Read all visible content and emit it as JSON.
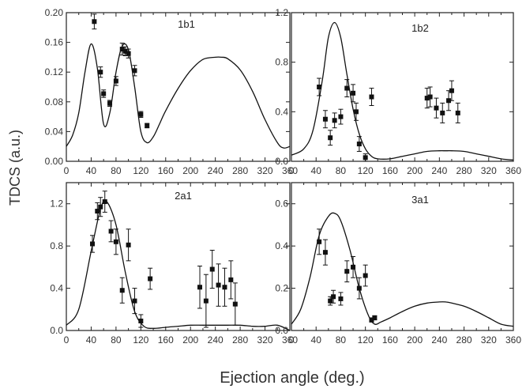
{
  "figure": {
    "ylabel": "TDCS (a.u.)",
    "xlabel": "Ejection angle (deg.)"
  },
  "chart_data": [
    {
      "type": "scatter",
      "title": "1b1",
      "xlim": [
        0,
        360
      ],
      "ylim": [
        0,
        0.2
      ],
      "xticks": [
        0,
        20,
        40,
        60,
        80,
        100,
        120,
        140,
        160,
        180,
        200,
        220,
        240,
        260,
        280,
        300,
        320,
        340,
        360
      ],
      "yticks": [
        0.0,
        0.04,
        0.08,
        0.12,
        0.16,
        0.2
      ],
      "ytick_labels": [
        "0.00",
        "0.04",
        "0.08",
        "0.12",
        "0.16",
        "0.20"
      ],
      "series": [
        {
          "kind": "points",
          "x": [
            45,
            55,
            60,
            70,
            80,
            90,
            95,
            100,
            110,
            120,
            130
          ],
          "y": [
            0.188,
            0.12,
            0.091,
            0.078,
            0.108,
            0.151,
            0.148,
            0.145,
            0.122,
            0.063,
            0.048
          ],
          "err": [
            0.01,
            0.007,
            0.005,
            0.004,
            0.006,
            0.008,
            0.006,
            0.006,
            0.007,
            0.004,
            0.003
          ]
        },
        {
          "kind": "line",
          "x": [
            0,
            10,
            20,
            30,
            40,
            50,
            60,
            70,
            80,
            90,
            100,
            110,
            120,
            130,
            140,
            150,
            160,
            180,
            200,
            220,
            240,
            250,
            260,
            280,
            300,
            320,
            340,
            350,
            360
          ],
          "y": [
            0.02,
            0.035,
            0.065,
            0.12,
            0.158,
            0.125,
            0.05,
            0.065,
            0.12,
            0.155,
            0.15,
            0.1,
            0.04,
            0.025,
            0.033,
            0.05,
            0.068,
            0.098,
            0.122,
            0.137,
            0.14,
            0.14,
            0.138,
            0.123,
            0.094,
            0.056,
            0.025,
            0.018,
            0.02
          ]
        }
      ]
    },
    {
      "type": "scatter",
      "title": "1b2",
      "xlim": [
        0,
        360
      ],
      "ylim": [
        0,
        1.2
      ],
      "xticks": [
        0,
        20,
        40,
        60,
        80,
        100,
        120,
        140,
        160,
        180,
        200,
        220,
        240,
        260,
        280,
        300,
        320,
        340,
        360
      ],
      "yticks": [
        0.0,
        0.4,
        0.8,
        1.2
      ],
      "ytick_labels": [
        "0.0",
        "0.4",
        "0.8",
        "1.2"
      ],
      "series": [
        {
          "kind": "points",
          "x": [
            45,
            55,
            63,
            70,
            80,
            90,
            100,
            105,
            110,
            120,
            130,
            220,
            225,
            235,
            245,
            255,
            260,
            270
          ],
          "y": [
            0.6,
            0.34,
            0.19,
            0.33,
            0.36,
            0.59,
            0.55,
            0.4,
            0.14,
            0.03,
            0.52,
            0.51,
            0.52,
            0.43,
            0.39,
            0.49,
            0.57,
            0.39
          ],
          "err": [
            0.07,
            0.07,
            0.06,
            0.06,
            0.06,
            0.07,
            0.07,
            0.07,
            0.06,
            0.03,
            0.07,
            0.08,
            0.08,
            0.08,
            0.08,
            0.08,
            0.08,
            0.08
          ]
        },
        {
          "kind": "line",
          "x": [
            0,
            20,
            35,
            50,
            60,
            70,
            80,
            90,
            100,
            110,
            120,
            130,
            140,
            160,
            180,
            200,
            220,
            240,
            250,
            260,
            280,
            300,
            320,
            340,
            360
          ],
          "y": [
            0.05,
            0.1,
            0.25,
            0.65,
            1.0,
            1.12,
            1.0,
            0.7,
            0.42,
            0.22,
            0.1,
            0.04,
            0.02,
            0.02,
            0.04,
            0.06,
            0.08,
            0.085,
            0.085,
            0.085,
            0.08,
            0.06,
            0.04,
            0.02,
            0.01
          ]
        }
      ]
    },
    {
      "type": "scatter",
      "title": "2a1",
      "xlim": [
        0,
        360
      ],
      "ylim": [
        0,
        1.4
      ],
      "xticks": [
        0,
        20,
        40,
        60,
        80,
        100,
        120,
        140,
        160,
        180,
        200,
        220,
        240,
        260,
        280,
        300,
        320,
        340,
        360
      ],
      "yticks": [
        0.0,
        0.4,
        0.8,
        1.2
      ],
      "ytick_labels": [
        "0.0",
        "0.4",
        "0.8",
        "1.2"
      ],
      "series": [
        {
          "kind": "points",
          "x": [
            42,
            50,
            55,
            62,
            72,
            80,
            90,
            100,
            110,
            120,
            135,
            215,
            225,
            235,
            245,
            255,
            265,
            272
          ],
          "y": [
            0.82,
            1.13,
            1.17,
            1.22,
            0.94,
            0.84,
            0.38,
            0.81,
            0.28,
            0.09,
            0.49,
            0.41,
            0.28,
            0.58,
            0.43,
            0.41,
            0.48,
            0.25
          ],
          "err": [
            0.08,
            0.08,
            0.09,
            0.1,
            0.1,
            0.12,
            0.12,
            0.15,
            0.12,
            0.06,
            0.1,
            0.2,
            0.25,
            0.18,
            0.2,
            0.18,
            0.18,
            0.2
          ]
        },
        {
          "kind": "line",
          "x": [
            0,
            20,
            40,
            55,
            65,
            80,
            95,
            110,
            125,
            140,
            160,
            180,
            200,
            220,
            240,
            250,
            260,
            280,
            300,
            320,
            340,
            360
          ],
          "y": [
            0.05,
            0.2,
            0.75,
            1.15,
            1.22,
            1.0,
            0.55,
            0.18,
            0.04,
            0.02,
            0.03,
            0.04,
            0.05,
            0.05,
            0.05,
            0.05,
            0.05,
            0.05,
            0.04,
            0.04,
            0.05,
            0.0
          ]
        }
      ]
    },
    {
      "type": "scatter",
      "title": "3a1",
      "xlim": [
        0,
        360
      ],
      "ylim": [
        0,
        0.7
      ],
      "xticks": [
        0,
        20,
        40,
        60,
        80,
        100,
        120,
        140,
        160,
        180,
        200,
        220,
        240,
        260,
        280,
        300,
        320,
        340,
        360
      ],
      "yticks": [
        0.0,
        0.2,
        0.4,
        0.6
      ],
      "ytick_labels": [
        "0.0",
        "0.2",
        "0.4",
        "0.6"
      ],
      "series": [
        {
          "kind": "points",
          "x": [
            45,
            55,
            63,
            68,
            80,
            90,
            100,
            110,
            120,
            130,
            135
          ],
          "y": [
            0.42,
            0.37,
            0.14,
            0.16,
            0.15,
            0.28,
            0.3,
            0.2,
            0.26,
            0.05,
            0.06
          ],
          "err": [
            0.06,
            0.06,
            0.02,
            0.03,
            0.03,
            0.05,
            0.05,
            0.05,
            0.05,
            0.01,
            0.01
          ]
        },
        {
          "kind": "line",
          "x": [
            0,
            15,
            30,
            45,
            60,
            70,
            80,
            95,
            110,
            125,
            135,
            145,
            160,
            180,
            200,
            220,
            240,
            250,
            260,
            280,
            300,
            320,
            340,
            360
          ],
          "y": [
            0.03,
            0.1,
            0.25,
            0.45,
            0.54,
            0.555,
            0.52,
            0.38,
            0.2,
            0.07,
            0.03,
            0.04,
            0.06,
            0.09,
            0.115,
            0.13,
            0.135,
            0.135,
            0.13,
            0.115,
            0.09,
            0.06,
            0.03,
            0.02
          ]
        }
      ]
    }
  ]
}
